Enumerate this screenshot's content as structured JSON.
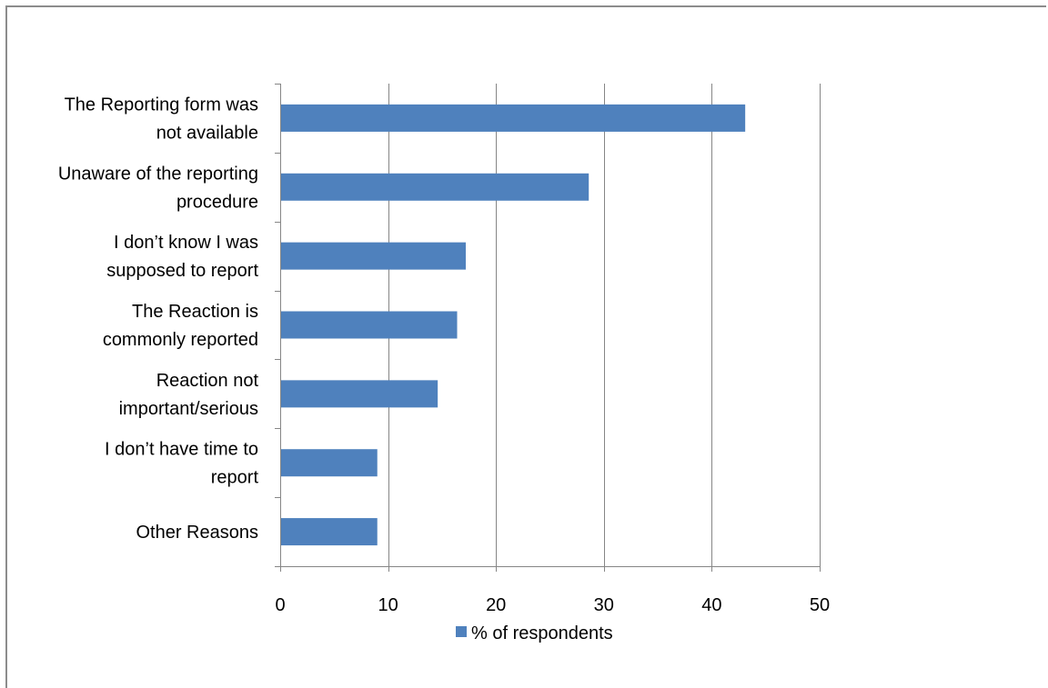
{
  "chart_data": {
    "type": "bar",
    "orientation": "horizontal",
    "categories": [
      [
        "The Reporting form was",
        "not available"
      ],
      [
        "Unaware of the reporting",
        "procedure"
      ],
      [
        "I don’t know I was",
        "supposed to report"
      ],
      [
        "The Reaction is",
        "commonly reported"
      ],
      [
        "Reaction not",
        "important/serious"
      ],
      [
        "I don’t have time to",
        "report"
      ],
      [
        "Other Reasons"
      ]
    ],
    "series": [
      {
        "name": "% of respondents",
        "values": [
          43.1,
          28.6,
          17.2,
          16.4,
          14.6,
          9.0,
          9.0
        ],
        "color": "#4f81bd"
      }
    ],
    "xlim": [
      0,
      50
    ],
    "xticks": [
      "0",
      "10",
      "20",
      "30",
      "40",
      "50"
    ],
    "grid": true,
    "legend_position": "bottom"
  }
}
